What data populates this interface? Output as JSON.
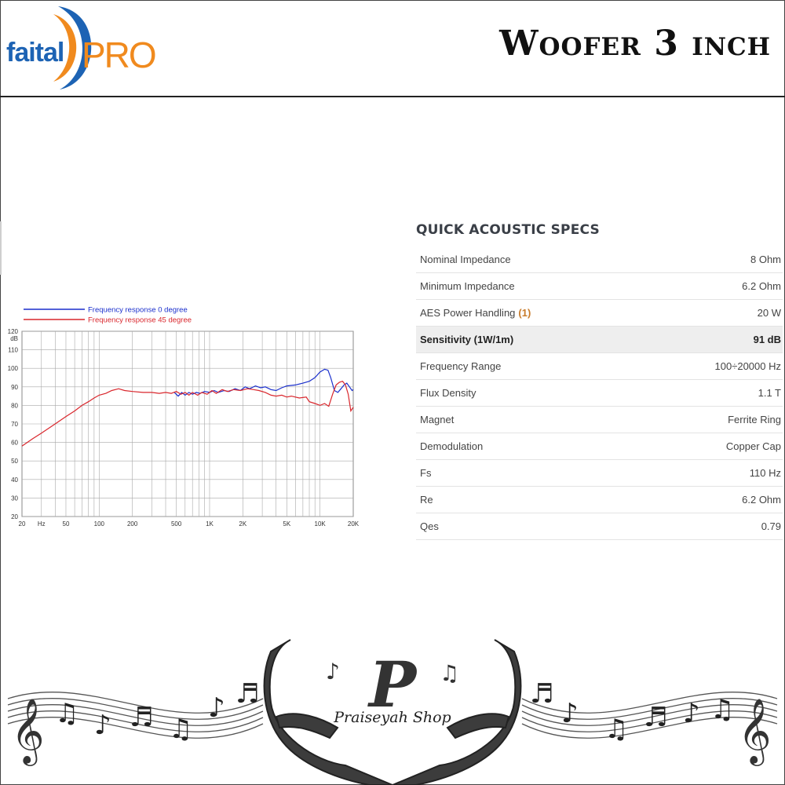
{
  "header": {
    "brand": {
      "left": "faital",
      "right": "PRO"
    },
    "title": "Woofer 3 inch"
  },
  "colors": {
    "series0": "#1a2fcc",
    "series45": "#d9262c",
    "brand_blue": "#1d63b4",
    "brand_orange": "#f08a1e"
  },
  "chart_data": {
    "type": "line",
    "xscale": "log",
    "xlim": [
      20,
      20000
    ],
    "ylim": [
      20,
      120
    ],
    "ylabel": "dB",
    "yticks": [
      20,
      30,
      40,
      50,
      60,
      70,
      80,
      90,
      100,
      110,
      120
    ],
    "xtick_labels": [
      {
        "value": 20,
        "label": "20"
      },
      {
        "value": 30,
        "label": "Hz"
      },
      {
        "value": 50,
        "label": "50"
      },
      {
        "value": 100,
        "label": "100"
      },
      {
        "value": 200,
        "label": "200"
      },
      {
        "value": 500,
        "label": "500"
      },
      {
        "value": 1000,
        "label": "1K"
      },
      {
        "value": 2000,
        "label": "2K"
      },
      {
        "value": 5000,
        "label": "5K"
      },
      {
        "value": 10000,
        "label": "10K"
      },
      {
        "value": 20000,
        "label": "20K"
      }
    ],
    "grid": true,
    "legend_position": "top-left",
    "series": [
      {
        "name": "Frequency response 0 degree",
        "color": "#1a2fcc",
        "points": [
          [
            480,
            87
          ],
          [
            520,
            85
          ],
          [
            560,
            87
          ],
          [
            600,
            85.5
          ],
          [
            650,
            87
          ],
          [
            700,
            86
          ],
          [
            760,
            87
          ],
          [
            820,
            86.5
          ],
          [
            900,
            87.5
          ],
          [
            1000,
            87
          ],
          [
            1100,
            88
          ],
          [
            1200,
            87
          ],
          [
            1350,
            88
          ],
          [
            1500,
            87.5
          ],
          [
            1700,
            89
          ],
          [
            1900,
            88
          ],
          [
            2100,
            90
          ],
          [
            2300,
            89
          ],
          [
            2600,
            90.5
          ],
          [
            2900,
            89.5
          ],
          [
            3200,
            90
          ],
          [
            3600,
            88.5
          ],
          [
            4000,
            88
          ],
          [
            4500,
            89.5
          ],
          [
            5000,
            90.5
          ],
          [
            6000,
            91
          ],
          [
            7000,
            92
          ],
          [
            8000,
            93
          ],
          [
            9000,
            95
          ],
          [
            10000,
            98
          ],
          [
            11000,
            99.5
          ],
          [
            11800,
            99
          ],
          [
            12500,
            95
          ],
          [
            13500,
            88
          ],
          [
            14500,
            87
          ],
          [
            15500,
            89
          ],
          [
            16500,
            91
          ],
          [
            17500,
            92
          ],
          [
            18500,
            90
          ],
          [
            19500,
            88
          ],
          [
            20000,
            88.5
          ]
        ]
      },
      {
        "name": "Frequency response 45 degree",
        "color": "#d9262c",
        "points": [
          [
            20,
            58
          ],
          [
            25,
            62
          ],
          [
            30,
            65
          ],
          [
            40,
            70
          ],
          [
            50,
            74
          ],
          [
            60,
            77
          ],
          [
            70,
            80
          ],
          [
            80,
            82
          ],
          [
            90,
            84
          ],
          [
            100,
            85.5
          ],
          [
            115,
            86.5
          ],
          [
            130,
            88
          ],
          [
            150,
            89
          ],
          [
            170,
            88
          ],
          [
            200,
            87.5
          ],
          [
            250,
            87
          ],
          [
            300,
            87
          ],
          [
            350,
            86.5
          ],
          [
            400,
            87
          ],
          [
            450,
            86.5
          ],
          [
            500,
            87.5
          ],
          [
            550,
            86
          ],
          [
            600,
            87
          ],
          [
            650,
            85.5
          ],
          [
            700,
            87
          ],
          [
            780,
            85.5
          ],
          [
            850,
            87
          ],
          [
            950,
            86
          ],
          [
            1050,
            88
          ],
          [
            1150,
            86.5
          ],
          [
            1300,
            88.5
          ],
          [
            1450,
            87.5
          ],
          [
            1650,
            88.5
          ],
          [
            1900,
            88
          ],
          [
            2200,
            89
          ],
          [
            2500,
            88.5
          ],
          [
            2800,
            88
          ],
          [
            3200,
            87
          ],
          [
            3600,
            85.5
          ],
          [
            4000,
            85
          ],
          [
            4500,
            85.5
          ],
          [
            5000,
            84.5
          ],
          [
            5500,
            85
          ],
          [
            6500,
            84
          ],
          [
            7500,
            84.5
          ],
          [
            8000,
            82
          ],
          [
            9000,
            81
          ],
          [
            10000,
            80
          ],
          [
            11000,
            81
          ],
          [
            12000,
            79.5
          ],
          [
            13000,
            86
          ],
          [
            14000,
            91
          ],
          [
            15000,
            92.5
          ],
          [
            16000,
            93
          ],
          [
            17000,
            91
          ],
          [
            18000,
            86
          ],
          [
            19000,
            77
          ],
          [
            20000,
            79
          ]
        ]
      }
    ]
  },
  "specs": {
    "heading": "QUICK ACOUSTIC SPECS",
    "rows": [
      {
        "label": "Nominal Impedance",
        "value": "8 Ohm"
      },
      {
        "label": "Minimum Impedance",
        "value": "6.2 Ohm"
      },
      {
        "label": "AES Power Handling",
        "note": "(1)",
        "value": "20 W"
      },
      {
        "label": "Sensitivity (1W/1m)",
        "value": "91 dB",
        "highlight": true
      },
      {
        "label": "Frequency Range",
        "value": "100÷20000 Hz"
      },
      {
        "label": "Flux Density",
        "value": "1.1 T"
      },
      {
        "label": "Magnet",
        "value": "Ferrite Ring"
      },
      {
        "label": "Demodulation",
        "value": "Copper Cap"
      },
      {
        "label": "Fs",
        "value": "110 Hz"
      },
      {
        "label": "Re",
        "value": "6.2 Ohm"
      },
      {
        "label": "Qes",
        "value": "0.79"
      }
    ]
  },
  "footer": {
    "shop_name": "Praiseyah Shop",
    "shop_initial": "P",
    "icons": [
      "hands-icon",
      "music-staff-icon",
      "treble-clef-icon",
      "music-note-icon"
    ]
  }
}
